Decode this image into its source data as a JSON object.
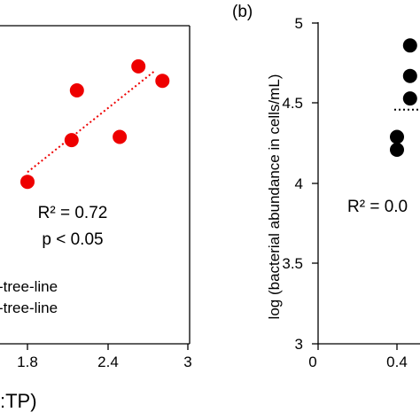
{
  "colors": {
    "red": "#ee0000",
    "black": "#000000",
    "text": "#000000",
    "background": "#ffffff"
  },
  "chart_data": [
    {
      "panel_label": "",
      "type": "scatter",
      "x_tick_labels": [
        "1.8",
        "2.4",
        "3"
      ],
      "xlim": [
        1.4,
        3
      ],
      "ylim": [
        3,
        5
      ],
      "xlabel_fragment": ":TP)",
      "points": [
        {
          "x": 1.8,
          "y": 4.01
        },
        {
          "x": 2.13,
          "y": 4.27
        },
        {
          "x": 2.17,
          "y": 4.58
        },
        {
          "x": 2.49,
          "y": 4.29
        },
        {
          "x": 2.63,
          "y": 4.73
        },
        {
          "x": 2.81,
          "y": 4.64
        }
      ],
      "trendline": {
        "x": [
          1.8,
          2.75
        ],
        "y": [
          4.07,
          4.7
        ],
        "style": "dotted"
      },
      "annotations": [
        "R² = 0.72",
        "p < 0.05"
      ],
      "legend": [
        "-tree-line",
        "-tree-line"
      ],
      "legend_placement": "bottom-left",
      "grid": false
    },
    {
      "panel_label": "(b)",
      "type": "scatter",
      "ylabel": "log (bacterial abundance in cells/mL)",
      "y_tick_labels": [
        "3",
        "3.5",
        "4",
        "4.5",
        "5"
      ],
      "x_tick_labels": [
        "0",
        "0.4"
      ],
      "ylim": [
        3,
        5
      ],
      "annotation": "R² = 0.0",
      "points": [
        {
          "x": 0.4,
          "y": 4.21
        },
        {
          "x": 0.4,
          "y": 4.29
        },
        {
          "x": 0.46,
          "y": 4.53
        },
        {
          "x": 0.46,
          "y": 4.67
        },
        {
          "x": 0.46,
          "y": 4.86
        }
      ],
      "trendline": {
        "style": "dotted",
        "y": 4.46
      },
      "grid": false
    }
  ]
}
